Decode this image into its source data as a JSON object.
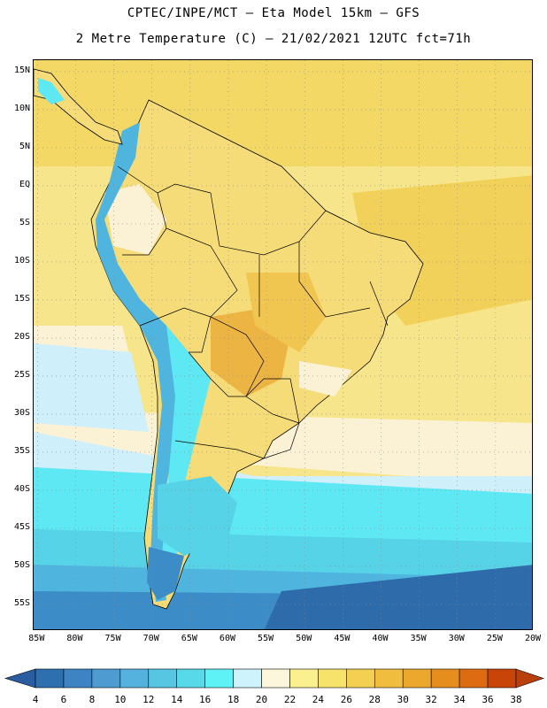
{
  "header": {
    "line1": "CPTEC/INPE/MCT –   Eta Model 15km – GFS",
    "line2": "2 Metre Temperature (C) – 21/02/2021 12UTC fct=71h"
  },
  "map": {
    "lat_labels": [
      "15N",
      "10N",
      "5N",
      "EQ",
      "5S",
      "10S",
      "15S",
      "20S",
      "25S",
      "30S",
      "35S",
      "40S",
      "45S",
      "50S",
      "55S"
    ],
    "lon_labels": [
      "85W",
      "80W",
      "75W",
      "70W",
      "65W",
      "60W",
      "55W",
      "50W",
      "45W",
      "40W",
      "35W",
      "30W",
      "25W",
      "20W"
    ],
    "lat_values": [
      15,
      10,
      5,
      0,
      -5,
      -10,
      -15,
      -20,
      -25,
      -30,
      -35,
      -40,
      -45,
      -50,
      -55
    ],
    "lon_values": [
      -85,
      -80,
      -75,
      -70,
      -65,
      -60,
      -55,
      -50,
      -45,
      -40,
      -35,
      -30,
      -25,
      -20
    ],
    "extent": {
      "lon_min": -85.5,
      "lon_max": -20,
      "lat_min": -58.5,
      "lat_max": 16.5
    }
  },
  "colorbar": {
    "labels": [
      "4",
      "6",
      "8",
      "10",
      "12",
      "14",
      "16",
      "18",
      "20",
      "22",
      "24",
      "26",
      "28",
      "30",
      "32",
      "34",
      "36",
      "38"
    ],
    "colors": [
      "#2e6faf",
      "#3f84c2",
      "#4d9bd1",
      "#55b1de",
      "#56c6e3",
      "#57d9ea",
      "#5ef2f6",
      "#cff3fc",
      "#fcf6dd",
      "#fbf08f",
      "#f7e26c",
      "#f4d052",
      "#f1bd3e",
      "#eca82c",
      "#e58e1d",
      "#dd6b11",
      "#c84409"
    ],
    "low_arrow_color": "#2a5da0",
    "high_arrow_color": "#b9400a"
  },
  "colors": {
    "ocean_warm": "#f6e58a",
    "ocean_hot": "#f3d35a",
    "land_warm": "#f5dc78",
    "land_hot": "#ecb443",
    "pale": "#fbf2d6",
    "cool": "#cff0fb",
    "cyan": "#5ee8f3",
    "cold": "#4fb5df",
    "deep": "#2d6bab"
  }
}
